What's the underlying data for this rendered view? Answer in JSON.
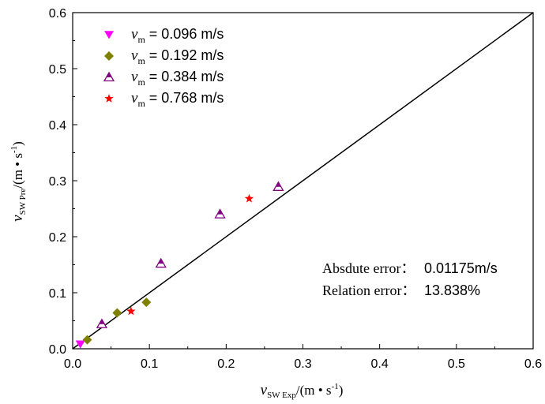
{
  "chart_data": {
    "type": "scatter",
    "xlim": [
      0,
      0.6
    ],
    "ylim": [
      0,
      0.6
    ],
    "x_ticks": [
      "0.0",
      "0.1",
      "0.2",
      "0.3",
      "0.4",
      "0.5",
      "0.6"
    ],
    "y_ticks": [
      "0.0",
      "0.1",
      "0.2",
      "0.3",
      "0.4",
      "0.5",
      "0.6"
    ],
    "xlabel": {
      "symbol": "v",
      "sub": "SW Exp",
      "unit": "/(m • s",
      "sup": "-1",
      "close": ")"
    },
    "ylabel": {
      "symbol": "v",
      "sub": "SW Pre",
      "unit": "/(m • s",
      "sup": "-1",
      "close": ")"
    },
    "grid": false,
    "legend_position": "top-left",
    "reference_line": {
      "x": [
        0,
        0.6
      ],
      "y": [
        0,
        0.6
      ],
      "color": "#000000"
    },
    "series": [
      {
        "name": "0.096 m/s",
        "legend_prefix": "v",
        "legend_sub": "m",
        "marker": "triangle-down",
        "color": "#ff00ff",
        "points": [
          [
            0.01,
            0.008
          ]
        ]
      },
      {
        "name": "0.192 m/s",
        "legend_prefix": "v",
        "legend_sub": "m",
        "marker": "diamond",
        "color": "#808000",
        "points": [
          [
            0.019,
            0.016
          ],
          [
            0.058,
            0.064
          ],
          [
            0.096,
            0.083
          ]
        ]
      },
      {
        "name": "0.384 m/s",
        "legend_prefix": "v",
        "legend_sub": "m",
        "marker": "triangle-half",
        "color": "#800080",
        "points": [
          [
            0.038,
            0.044
          ],
          [
            0.115,
            0.152
          ],
          [
            0.192,
            0.24
          ],
          [
            0.268,
            0.289
          ]
        ]
      },
      {
        "name": "0.768 m/s",
        "legend_prefix": "v",
        "legend_sub": "m",
        "marker": "star",
        "color": "#ff0000",
        "points": [
          [
            0.076,
            0.067
          ],
          [
            0.23,
            0.268
          ]
        ]
      }
    ],
    "annotations": [
      {
        "label": "Absdute error：",
        "value": "0.01175m/s"
      },
      {
        "label": "Relation error：",
        "value": "13.838%"
      }
    ]
  }
}
